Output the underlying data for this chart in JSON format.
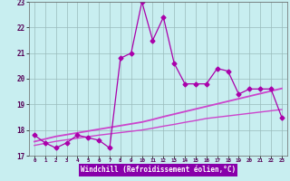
{
  "xlabel": "Windchill (Refroidissement éolien,°C)",
  "x_hours": [
    0,
    1,
    2,
    3,
    4,
    5,
    6,
    7,
    8,
    9,
    10,
    11,
    12,
    13,
    14,
    15,
    16,
    17,
    18,
    19,
    20,
    21,
    22,
    23
  ],
  "main_line": [
    17.8,
    17.5,
    17.3,
    17.5,
    17.8,
    17.7,
    17.6,
    17.3,
    20.8,
    21.0,
    23.0,
    21.5,
    22.4,
    20.6,
    19.8,
    19.8,
    19.8,
    20.4,
    20.3,
    19.4,
    19.6,
    19.6,
    19.6,
    18.5
  ],
  "trend_line1": [
    17.55,
    17.65,
    17.75,
    17.82,
    17.89,
    17.96,
    18.03,
    18.1,
    18.17,
    18.24,
    18.31,
    18.41,
    18.52,
    18.62,
    18.72,
    18.82,
    18.92,
    19.02,
    19.12,
    19.22,
    19.32,
    19.42,
    19.52,
    19.62
  ],
  "trend_line2": [
    17.4,
    17.48,
    17.56,
    17.62,
    17.68,
    17.74,
    17.8,
    17.85,
    17.9,
    17.95,
    18.0,
    18.07,
    18.15,
    18.22,
    18.3,
    18.37,
    18.45,
    18.5,
    18.55,
    18.6,
    18.65,
    18.7,
    18.75,
    18.8
  ],
  "ylim": [
    17,
    23
  ],
  "xlim": [
    -0.5,
    23.5
  ],
  "yticks": [
    17,
    18,
    19,
    20,
    21,
    22,
    23
  ],
  "xticks": [
    0,
    1,
    2,
    3,
    4,
    5,
    6,
    7,
    8,
    9,
    10,
    11,
    12,
    13,
    14,
    15,
    16,
    17,
    18,
    19,
    20,
    21,
    22,
    23
  ],
  "line_color": "#aa00aa",
  "trend_color1": "#cc44cc",
  "trend_color2": "#cc44cc",
  "bg_color": "#c8eef0",
  "xlabel_bg": "#8800aa",
  "xlabel_fg": "#ffffff",
  "grid_color": "#99bbbb",
  "marker": "D",
  "marker_size": 2.5,
  "linewidth": 0.9
}
